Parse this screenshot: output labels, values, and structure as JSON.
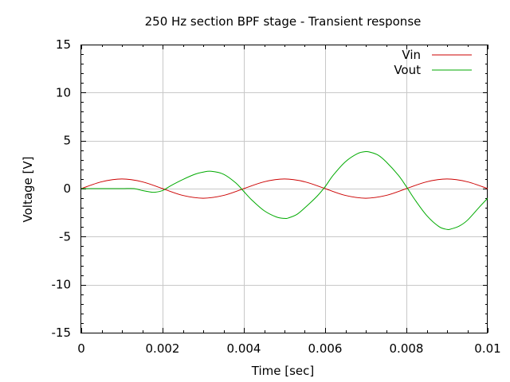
{
  "chart_data": {
    "type": "line",
    "title": "250 Hz section BPF stage - Transient response",
    "xlabel": "Time [sec]",
    "ylabel": "Voltage [V]",
    "xlim": [
      0,
      0.01
    ],
    "ylim": [
      -15,
      15
    ],
    "xticks": [
      "0",
      "0.002",
      "0.004",
      "0.006",
      "0.008",
      "0.01"
    ],
    "xtick_values": [
      0,
      0.002,
      0.004,
      0.006,
      0.008,
      0.01
    ],
    "yticks": [
      "15",
      "10",
      "5",
      "0",
      "-5",
      "-10",
      "-15"
    ],
    "ytick_values": [
      15,
      10,
      5,
      0,
      -5,
      -10,
      -15
    ],
    "grid": true,
    "legend_position": "top-right",
    "series": [
      {
        "name": "Vin",
        "color": "#cc0000",
        "x": [
          0,
          0.0005,
          0.001,
          0.0015,
          0.002,
          0.0025,
          0.003,
          0.0035,
          0.004,
          0.0045,
          0.005,
          0.0055,
          0.006,
          0.0065,
          0.007,
          0.0075,
          0.008,
          0.0085,
          0.009,
          0.0095,
          0.01
        ],
        "y": [
          0,
          0.71,
          1.0,
          0.71,
          0,
          -0.71,
          -1.0,
          -0.71,
          0,
          0.71,
          1.0,
          0.71,
          0,
          -0.71,
          -1.0,
          -0.71,
          0,
          0.71,
          1.0,
          0.71,
          0
        ]
      },
      {
        "name": "Vout",
        "color": "#00aa00",
        "x": [
          0,
          0.0005,
          0.001,
          0.0013,
          0.0015,
          0.0017,
          0.0018,
          0.002,
          0.0022,
          0.0025,
          0.0028,
          0.003,
          0.0032,
          0.0035,
          0.0038,
          0.004,
          0.0042,
          0.0045,
          0.0048,
          0.005,
          0.0051,
          0.0053,
          0.0055,
          0.0058,
          0.006,
          0.0062,
          0.0065,
          0.0068,
          0.007,
          0.0071,
          0.0073,
          0.0075,
          0.0078,
          0.008,
          0.0082,
          0.0085,
          0.0088,
          0.009,
          0.0091,
          0.0093,
          0.0095,
          0.0098,
          0.01
        ],
        "y": [
          0,
          0,
          0,
          0,
          -0.2,
          -0.35,
          -0.38,
          -0.2,
          0.3,
          0.95,
          1.5,
          1.72,
          1.8,
          1.5,
          0.6,
          -0.3,
          -1.2,
          -2.3,
          -2.95,
          -3.1,
          -3.05,
          -2.7,
          -2.0,
          -0.8,
          0.2,
          1.4,
          2.8,
          3.65,
          3.85,
          3.8,
          3.5,
          2.8,
          1.4,
          0.2,
          -1.1,
          -2.8,
          -3.95,
          -4.25,
          -4.2,
          -3.9,
          -3.3,
          -1.9,
          -1.0
        ]
      }
    ]
  }
}
